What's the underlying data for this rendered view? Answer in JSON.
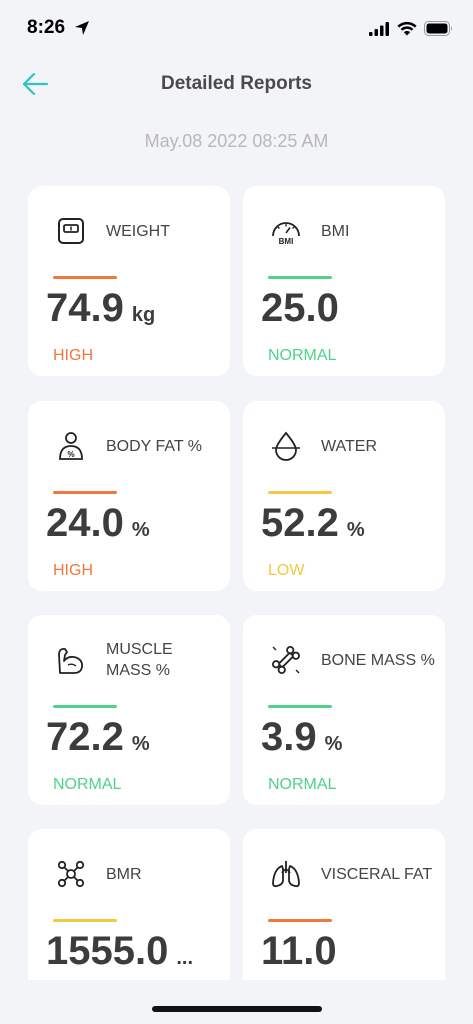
{
  "status_bar": {
    "time": "8:26"
  },
  "header": {
    "title": "Detailed Reports",
    "back_icon": "arrow-left-icon"
  },
  "timestamp": "May.08 2022 08:25 AM",
  "colors": {
    "accent": "#2ec4c6",
    "high": "#f2773a",
    "normal": "#4fd28a",
    "low": "#f5c842"
  },
  "metrics": [
    {
      "label": "WEIGHT",
      "value": "74.9",
      "unit": "kg",
      "status": "HIGH",
      "status_color": "#f2773a",
      "icon": "scale-icon"
    },
    {
      "label": "BMI",
      "value": "25.0",
      "unit": "",
      "status": "NORMAL",
      "status_color": "#4fd28a",
      "icon": "bmi-gauge-icon"
    },
    {
      "label": "BODY FAT %",
      "value": "24.0",
      "unit": "%",
      "status": "HIGH",
      "status_color": "#f2773a",
      "icon": "body-fat-icon"
    },
    {
      "label": "WATER",
      "value": "52.2",
      "unit": "%",
      "status": "LOW",
      "status_color": "#f5c842",
      "icon": "water-drop-icon"
    },
    {
      "label": "MUSCLE MASS %",
      "value": "72.2",
      "unit": "%",
      "status": "NORMAL",
      "status_color": "#4fd28a",
      "icon": "muscle-icon"
    },
    {
      "label": "BONE MASS %",
      "value": "3.9",
      "unit": "%",
      "status": "NORMAL",
      "status_color": "#4fd28a",
      "icon": "bone-icon"
    },
    {
      "label": "BMR",
      "value": "1555.0",
      "unit": "...",
      "status": "",
      "status_color": "#f5c842",
      "icon": "molecule-icon"
    },
    {
      "label": "VISCERAL FAT",
      "value": "11.0",
      "unit": "",
      "status": "",
      "status_color": "#f2773a",
      "icon": "lungs-icon"
    }
  ]
}
